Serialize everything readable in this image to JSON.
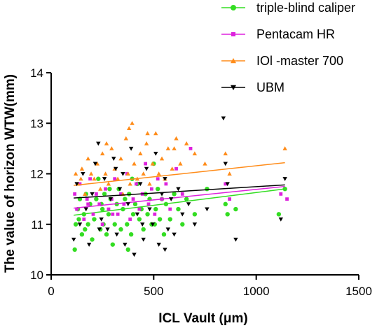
{
  "chart_data": {
    "type": "scatter",
    "xlabel": "ICL Vault (μm)",
    "ylabel": "The value of horizon WTW(mm)",
    "xlim": [
      0,
      1500
    ],
    "ylim": [
      10,
      14
    ],
    "xticks": [
      "0",
      "500",
      "1000",
      "1500"
    ],
    "yticks": [
      "10",
      "11",
      "12",
      "13",
      "14"
    ],
    "grid": false,
    "legend_position": "top-right",
    "series": [
      {
        "name": "triple-blind caliper",
        "color": "#33dd22",
        "marker": "circle",
        "trend": [
          [
            110,
            11.18
          ],
          [
            1140,
            11.7
          ]
        ],
        "points": [
          [
            115,
            10.5
          ],
          [
            120,
            11.0
          ],
          [
            130,
            11.3
          ],
          [
            140,
            11.5
          ],
          [
            150,
            10.8
          ],
          [
            160,
            11.2
          ],
          [
            170,
            11.6
          ],
          [
            180,
            11.0
          ],
          [
            190,
            11.4
          ],
          [
            200,
            10.7
          ],
          [
            210,
            11.1
          ],
          [
            220,
            11.5
          ],
          [
            230,
            11.9
          ],
          [
            240,
            10.9
          ],
          [
            250,
            11.3
          ],
          [
            255,
            11.0
          ],
          [
            260,
            11.6
          ],
          [
            270,
            10.8
          ],
          [
            280,
            11.2
          ],
          [
            290,
            11.5
          ],
          [
            300,
            10.6
          ],
          [
            310,
            11.0
          ],
          [
            320,
            11.4
          ],
          [
            330,
            11.7
          ],
          [
            340,
            10.9
          ],
          [
            350,
            11.3
          ],
          [
            360,
            11.5
          ],
          [
            370,
            11.0
          ],
          [
            380,
            11.6
          ],
          [
            390,
            10.8
          ],
          [
            400,
            11.2
          ],
          [
            410,
            11.4
          ],
          [
            420,
            11.8
          ],
          [
            430,
            11.1
          ],
          [
            440,
            11.3
          ],
          [
            450,
            10.9
          ],
          [
            460,
            11.6
          ],
          [
            470,
            11.2
          ],
          [
            480,
            11.5
          ],
          [
            490,
            11.0
          ],
          [
            500,
            12.2
          ],
          [
            510,
            11.3
          ],
          [
            520,
            11.7
          ],
          [
            530,
            11.1
          ],
          [
            540,
            11.5
          ],
          [
            550,
            10.8
          ],
          [
            560,
            11.4
          ],
          [
            580,
            11.1
          ],
          [
            600,
            11.6
          ],
          [
            620,
            11.3
          ],
          [
            640,
            11.0
          ],
          [
            660,
            11.5
          ],
          [
            700,
            11.2
          ],
          [
            760,
            11.7
          ],
          [
            850,
            11.4
          ],
          [
            860,
            11.2
          ],
          [
            900,
            11.3
          ],
          [
            1110,
            11.2
          ],
          [
            1140,
            11.7
          ],
          [
            135,
            11.1
          ],
          [
            245,
            11.4
          ],
          [
            375,
            10.5
          ],
          [
            395,
            11.9
          ],
          [
            505,
            11.0
          ],
          [
            285,
            11.7
          ],
          [
            165,
            10.9
          ]
        ]
      },
      {
        "name": "Pentacam HR",
        "color": "#dd22dd",
        "marker": "square",
        "trend": [
          [
            110,
            11.32
          ],
          [
            1140,
            11.75
          ]
        ],
        "points": [
          [
            115,
            11.6
          ],
          [
            125,
            11.3
          ],
          [
            140,
            11.8
          ],
          [
            160,
            11.1
          ],
          [
            175,
            11.5
          ],
          [
            190,
            11.9
          ],
          [
            205,
            11.2
          ],
          [
            220,
            11.6
          ],
          [
            235,
            11.4
          ],
          [
            250,
            11.0
          ],
          [
            265,
            11.7
          ],
          [
            280,
            11.3
          ],
          [
            295,
            11.5
          ],
          [
            310,
            11.9
          ],
          [
            325,
            11.2
          ],
          [
            340,
            11.6
          ],
          [
            355,
            11.4
          ],
          [
            370,
            12.0
          ],
          [
            385,
            11.1
          ],
          [
            400,
            11.5
          ],
          [
            415,
            11.8
          ],
          [
            430,
            11.3
          ],
          [
            445,
            11.6
          ],
          [
            460,
            12.2
          ],
          [
            475,
            11.4
          ],
          [
            490,
            11.7
          ],
          [
            505,
            11.2
          ],
          [
            520,
            11.9
          ],
          [
            540,
            11.5
          ],
          [
            560,
            11.8
          ],
          [
            580,
            11.3
          ],
          [
            610,
            12.1
          ],
          [
            640,
            11.6
          ],
          [
            680,
            12.5
          ],
          [
            850,
            11.8
          ],
          [
            870,
            11.5
          ],
          [
            1120,
            11.6
          ],
          [
            1150,
            11.5
          ],
          [
            300,
            11.2
          ],
          [
            180,
            11.4
          ]
        ]
      },
      {
        "name": "IOl -master 700",
        "color": "#ff8c1a",
        "marker": "triangle-up",
        "trend": [
          [
            110,
            11.77
          ],
          [
            1140,
            12.22
          ]
        ],
        "points": [
          [
            120,
            12.0
          ],
          [
            130,
            11.8
          ],
          [
            150,
            12.1
          ],
          [
            165,
            11.6
          ],
          [
            180,
            12.3
          ],
          [
            195,
            12.0
          ],
          [
            210,
            11.9
          ],
          [
            225,
            12.2
          ],
          [
            240,
            11.7
          ],
          [
            250,
            12.4
          ],
          [
            265,
            12.0
          ],
          [
            280,
            11.8
          ],
          [
            295,
            12.5
          ],
          [
            310,
            12.1
          ],
          [
            325,
            11.9
          ],
          [
            340,
            12.3
          ],
          [
            350,
            11.6
          ],
          [
            365,
            12.7
          ],
          [
            375,
            12.0
          ],
          [
            385,
            11.8
          ],
          [
            395,
            13.0
          ],
          [
            405,
            12.2
          ],
          [
            420,
            11.9
          ],
          [
            435,
            12.4
          ],
          [
            450,
            12.0
          ],
          [
            465,
            12.6
          ],
          [
            480,
            11.8
          ],
          [
            495,
            12.2
          ],
          [
            510,
            12.8
          ],
          [
            525,
            12.0
          ],
          [
            540,
            12.3
          ],
          [
            555,
            11.9
          ],
          [
            570,
            12.5
          ],
          [
            590,
            12.1
          ],
          [
            610,
            12.7
          ],
          [
            630,
            12.2
          ],
          [
            660,
            12.6
          ],
          [
            700,
            12.4
          ],
          [
            750,
            12.2
          ],
          [
            850,
            12.4
          ],
          [
            870,
            12.0
          ],
          [
            1140,
            12.5
          ],
          [
            145,
            11.9
          ],
          [
            270,
            12.6
          ],
          [
            380,
            12.9
          ],
          [
            470,
            12.8
          ],
          [
            600,
            12.5
          ]
        ]
      },
      {
        "name": "UBM",
        "color": "#000000",
        "marker": "triangle-down",
        "trend": [
          [
            110,
            11.52
          ],
          [
            1140,
            11.78
          ]
        ],
        "points": [
          [
            110,
            10.7
          ],
          [
            125,
            11.8
          ],
          [
            140,
            11.0
          ],
          [
            155,
            12.0
          ],
          [
            170,
            11.3
          ],
          [
            185,
            10.6
          ],
          [
            200,
            11.6
          ],
          [
            215,
            12.2
          ],
          [
            230,
            12.6
          ],
          [
            245,
            11.1
          ],
          [
            260,
            11.9
          ],
          [
            275,
            10.9
          ],
          [
            290,
            11.5
          ],
          [
            305,
            12.3
          ],
          [
            320,
            10.8
          ],
          [
            335,
            11.7
          ],
          [
            350,
            12.0
          ],
          [
            360,
            10.6
          ],
          [
            375,
            11.4
          ],
          [
            390,
            12.5
          ],
          [
            405,
            10.4
          ],
          [
            420,
            11.2
          ],
          [
            435,
            11.8
          ],
          [
            450,
            10.7
          ],
          [
            465,
            12.1
          ],
          [
            480,
            11.3
          ],
          [
            495,
            11.0
          ],
          [
            510,
            12.4
          ],
          [
            525,
            10.6
          ],
          [
            540,
            11.6
          ],
          [
            555,
            11.9
          ],
          [
            570,
            10.9
          ],
          [
            585,
            11.5
          ],
          [
            600,
            10.8
          ],
          [
            620,
            11.7
          ],
          [
            640,
            11.2
          ],
          [
            670,
            11.4
          ],
          [
            700,
            11.0
          ],
          [
            760,
            11.3
          ],
          [
            840,
            13.1
          ],
          [
            850,
            12.2
          ],
          [
            860,
            11.8
          ],
          [
            900,
            10.7
          ],
          [
            1120,
            11.1
          ],
          [
            1140,
            11.9
          ],
          [
            235,
            10.9
          ],
          [
            315,
            12.1
          ],
          [
            445,
            11.0
          ],
          [
            555,
            10.5
          ]
        ]
      }
    ]
  }
}
